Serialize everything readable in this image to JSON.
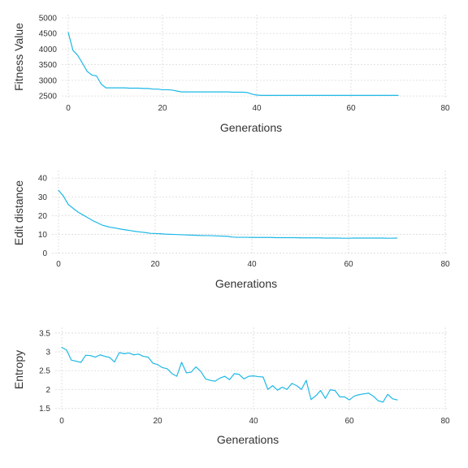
{
  "colors": {
    "series": "#1eb8e6",
    "grid": "#d9d9d9",
    "text": "#333333"
  },
  "chart_data": [
    {
      "type": "line",
      "xlabel": "Generations",
      "ylabel": "Fitness Value",
      "xlim": [
        0,
        80
      ],
      "ylim": [
        2400,
        5100
      ],
      "xticks": [
        0,
        20,
        40,
        60,
        80
      ],
      "yticks": [
        2500,
        3000,
        3500,
        4000,
        4500,
        5000
      ],
      "grid": true,
      "series": [
        {
          "x": [
            0,
            1,
            2,
            3,
            4,
            5,
            6,
            7,
            8,
            9,
            10,
            11,
            12,
            13,
            14,
            15,
            16,
            17,
            18,
            19,
            20,
            21,
            22,
            23,
            24,
            25,
            26,
            27,
            28,
            29,
            30,
            31,
            32,
            33,
            34,
            35,
            36,
            37,
            38,
            39,
            40,
            41,
            42,
            43,
            44,
            45,
            46,
            47,
            48,
            49,
            50,
            51,
            52,
            53,
            54,
            55,
            56,
            57,
            58,
            59,
            60,
            61,
            62,
            63,
            64,
            65,
            66,
            67,
            68,
            69,
            70
          ],
          "y": [
            4530,
            3960,
            3800,
            3550,
            3290,
            3170,
            3140,
            2880,
            2760,
            2760,
            2760,
            2760,
            2760,
            2750,
            2750,
            2750,
            2740,
            2740,
            2720,
            2720,
            2700,
            2700,
            2690,
            2660,
            2630,
            2630,
            2630,
            2630,
            2630,
            2630,
            2630,
            2630,
            2630,
            2630,
            2630,
            2620,
            2620,
            2620,
            2610,
            2560,
            2530,
            2520,
            2520,
            2520,
            2520,
            2520,
            2520,
            2520,
            2520,
            2520,
            2520,
            2520,
            2520,
            2520,
            2520,
            2520,
            2520,
            2520,
            2520,
            2520,
            2520,
            2520,
            2520,
            2520,
            2520,
            2520,
            2520,
            2520,
            2520,
            2520,
            2520
          ]
        }
      ]
    },
    {
      "type": "line",
      "xlabel": "Generations",
      "ylabel": "Edit distance",
      "xlim": [
        0,
        80
      ],
      "ylim": [
        -1,
        44
      ],
      "xticks": [
        0,
        20,
        40,
        60,
        80
      ],
      "yticks": [
        0,
        10,
        20,
        30,
        40
      ],
      "grid": true,
      "series": [
        {
          "x": [
            0,
            1,
            2,
            3,
            4,
            5,
            6,
            7,
            8,
            9,
            10,
            11,
            12,
            13,
            14,
            15,
            16,
            17,
            18,
            19,
            20,
            21,
            22,
            23,
            24,
            25,
            26,
            27,
            28,
            29,
            30,
            31,
            32,
            33,
            34,
            35,
            36,
            37,
            38,
            39,
            40,
            41,
            42,
            43,
            44,
            45,
            46,
            47,
            48,
            49,
            50,
            51,
            52,
            53,
            54,
            55,
            56,
            57,
            58,
            59,
            60,
            61,
            62,
            63,
            64,
            65,
            66,
            67,
            68,
            69,
            70
          ],
          "y": [
            33.5,
            30.5,
            26,
            24,
            22,
            20.5,
            19,
            17.5,
            16.3,
            15,
            14.3,
            13.7,
            13.3,
            12.8,
            12.4,
            12,
            11.6,
            11.3,
            11,
            10.6,
            10.5,
            10.4,
            10.2,
            10.1,
            10,
            9.9,
            9.8,
            9.7,
            9.6,
            9.5,
            9.4,
            9.4,
            9.3,
            9.2,
            9.1,
            9,
            8.6,
            8.5,
            8.5,
            8.5,
            8.4,
            8.4,
            8.4,
            8.4,
            8.4,
            8.3,
            8.3,
            8.3,
            8.3,
            8.3,
            8.2,
            8.2,
            8.2,
            8.2,
            8.2,
            8.1,
            8.1,
            8.1,
            8.1,
            8.0,
            8.0,
            8.1,
            8.1,
            8.1,
            8.1,
            8.1,
            8.1,
            8.1,
            8.0,
            8.0,
            8.1
          ]
        }
      ]
    },
    {
      "type": "line",
      "xlabel": "Generations",
      "ylabel": "Entropy",
      "xlim": [
        0,
        80
      ],
      "ylim": [
        1.4,
        3.65
      ],
      "xticks": [
        0,
        20,
        40,
        60,
        80
      ],
      "yticks": [
        1.5,
        2.0,
        2.5,
        3.0,
        3.5
      ],
      "grid": true,
      "series": [
        {
          "x": [
            0,
            1,
            2,
            3,
            4,
            5,
            6,
            7,
            8,
            9,
            10,
            11,
            12,
            13,
            14,
            15,
            16,
            17,
            18,
            19,
            20,
            21,
            22,
            23,
            24,
            25,
            26,
            27,
            28,
            29,
            30,
            31,
            32,
            33,
            34,
            35,
            36,
            37,
            38,
            39,
            40,
            41,
            42,
            43,
            44,
            45,
            46,
            47,
            48,
            49,
            50,
            51,
            52,
            53,
            54,
            55,
            56,
            57,
            58,
            59,
            60,
            61,
            62,
            63,
            64,
            65,
            66,
            67,
            68,
            69,
            70
          ],
          "y": [
            3.12,
            3.05,
            2.78,
            2.75,
            2.72,
            2.91,
            2.9,
            2.86,
            2.92,
            2.88,
            2.85,
            2.73,
            2.98,
            2.95,
            2.97,
            2.92,
            2.94,
            2.88,
            2.86,
            2.7,
            2.66,
            2.58,
            2.55,
            2.42,
            2.35,
            2.72,
            2.44,
            2.46,
            2.6,
            2.48,
            2.28,
            2.24,
            2.22,
            2.3,
            2.35,
            2.26,
            2.42,
            2.4,
            2.28,
            2.35,
            2.36,
            2.34,
            2.33,
            2.0,
            2.1,
            1.98,
            2.06,
            2.0,
            2.16,
            2.1,
            2.0,
            2.24,
            1.73,
            1.83,
            1.97,
            1.76,
            1.99,
            1.97,
            1.8,
            1.8,
            1.72,
            1.82,
            1.86,
            1.88,
            1.9,
            1.82,
            1.7,
            1.66,
            1.87,
            1.75,
            1.72
          ]
        }
      ]
    }
  ]
}
